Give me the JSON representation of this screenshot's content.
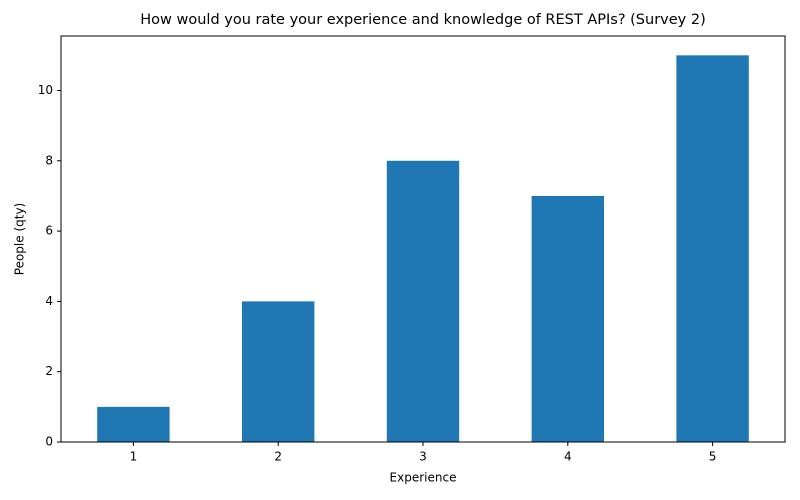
{
  "chart_data": {
    "type": "bar",
    "title": "How would you rate your experience and knowledge of REST APIs? (Survey 2)",
    "x_label": "Experience",
    "y_label": "People (qty)",
    "categories": [
      "1",
      "2",
      "3",
      "4",
      "5"
    ],
    "values": [
      1,
      4,
      8,
      7,
      11
    ],
    "color": "#1f77b4",
    "ylim": [
      0,
      11.55
    ],
    "yticks": [
      0,
      2,
      4,
      6,
      8,
      10
    ],
    "grid": false
  }
}
